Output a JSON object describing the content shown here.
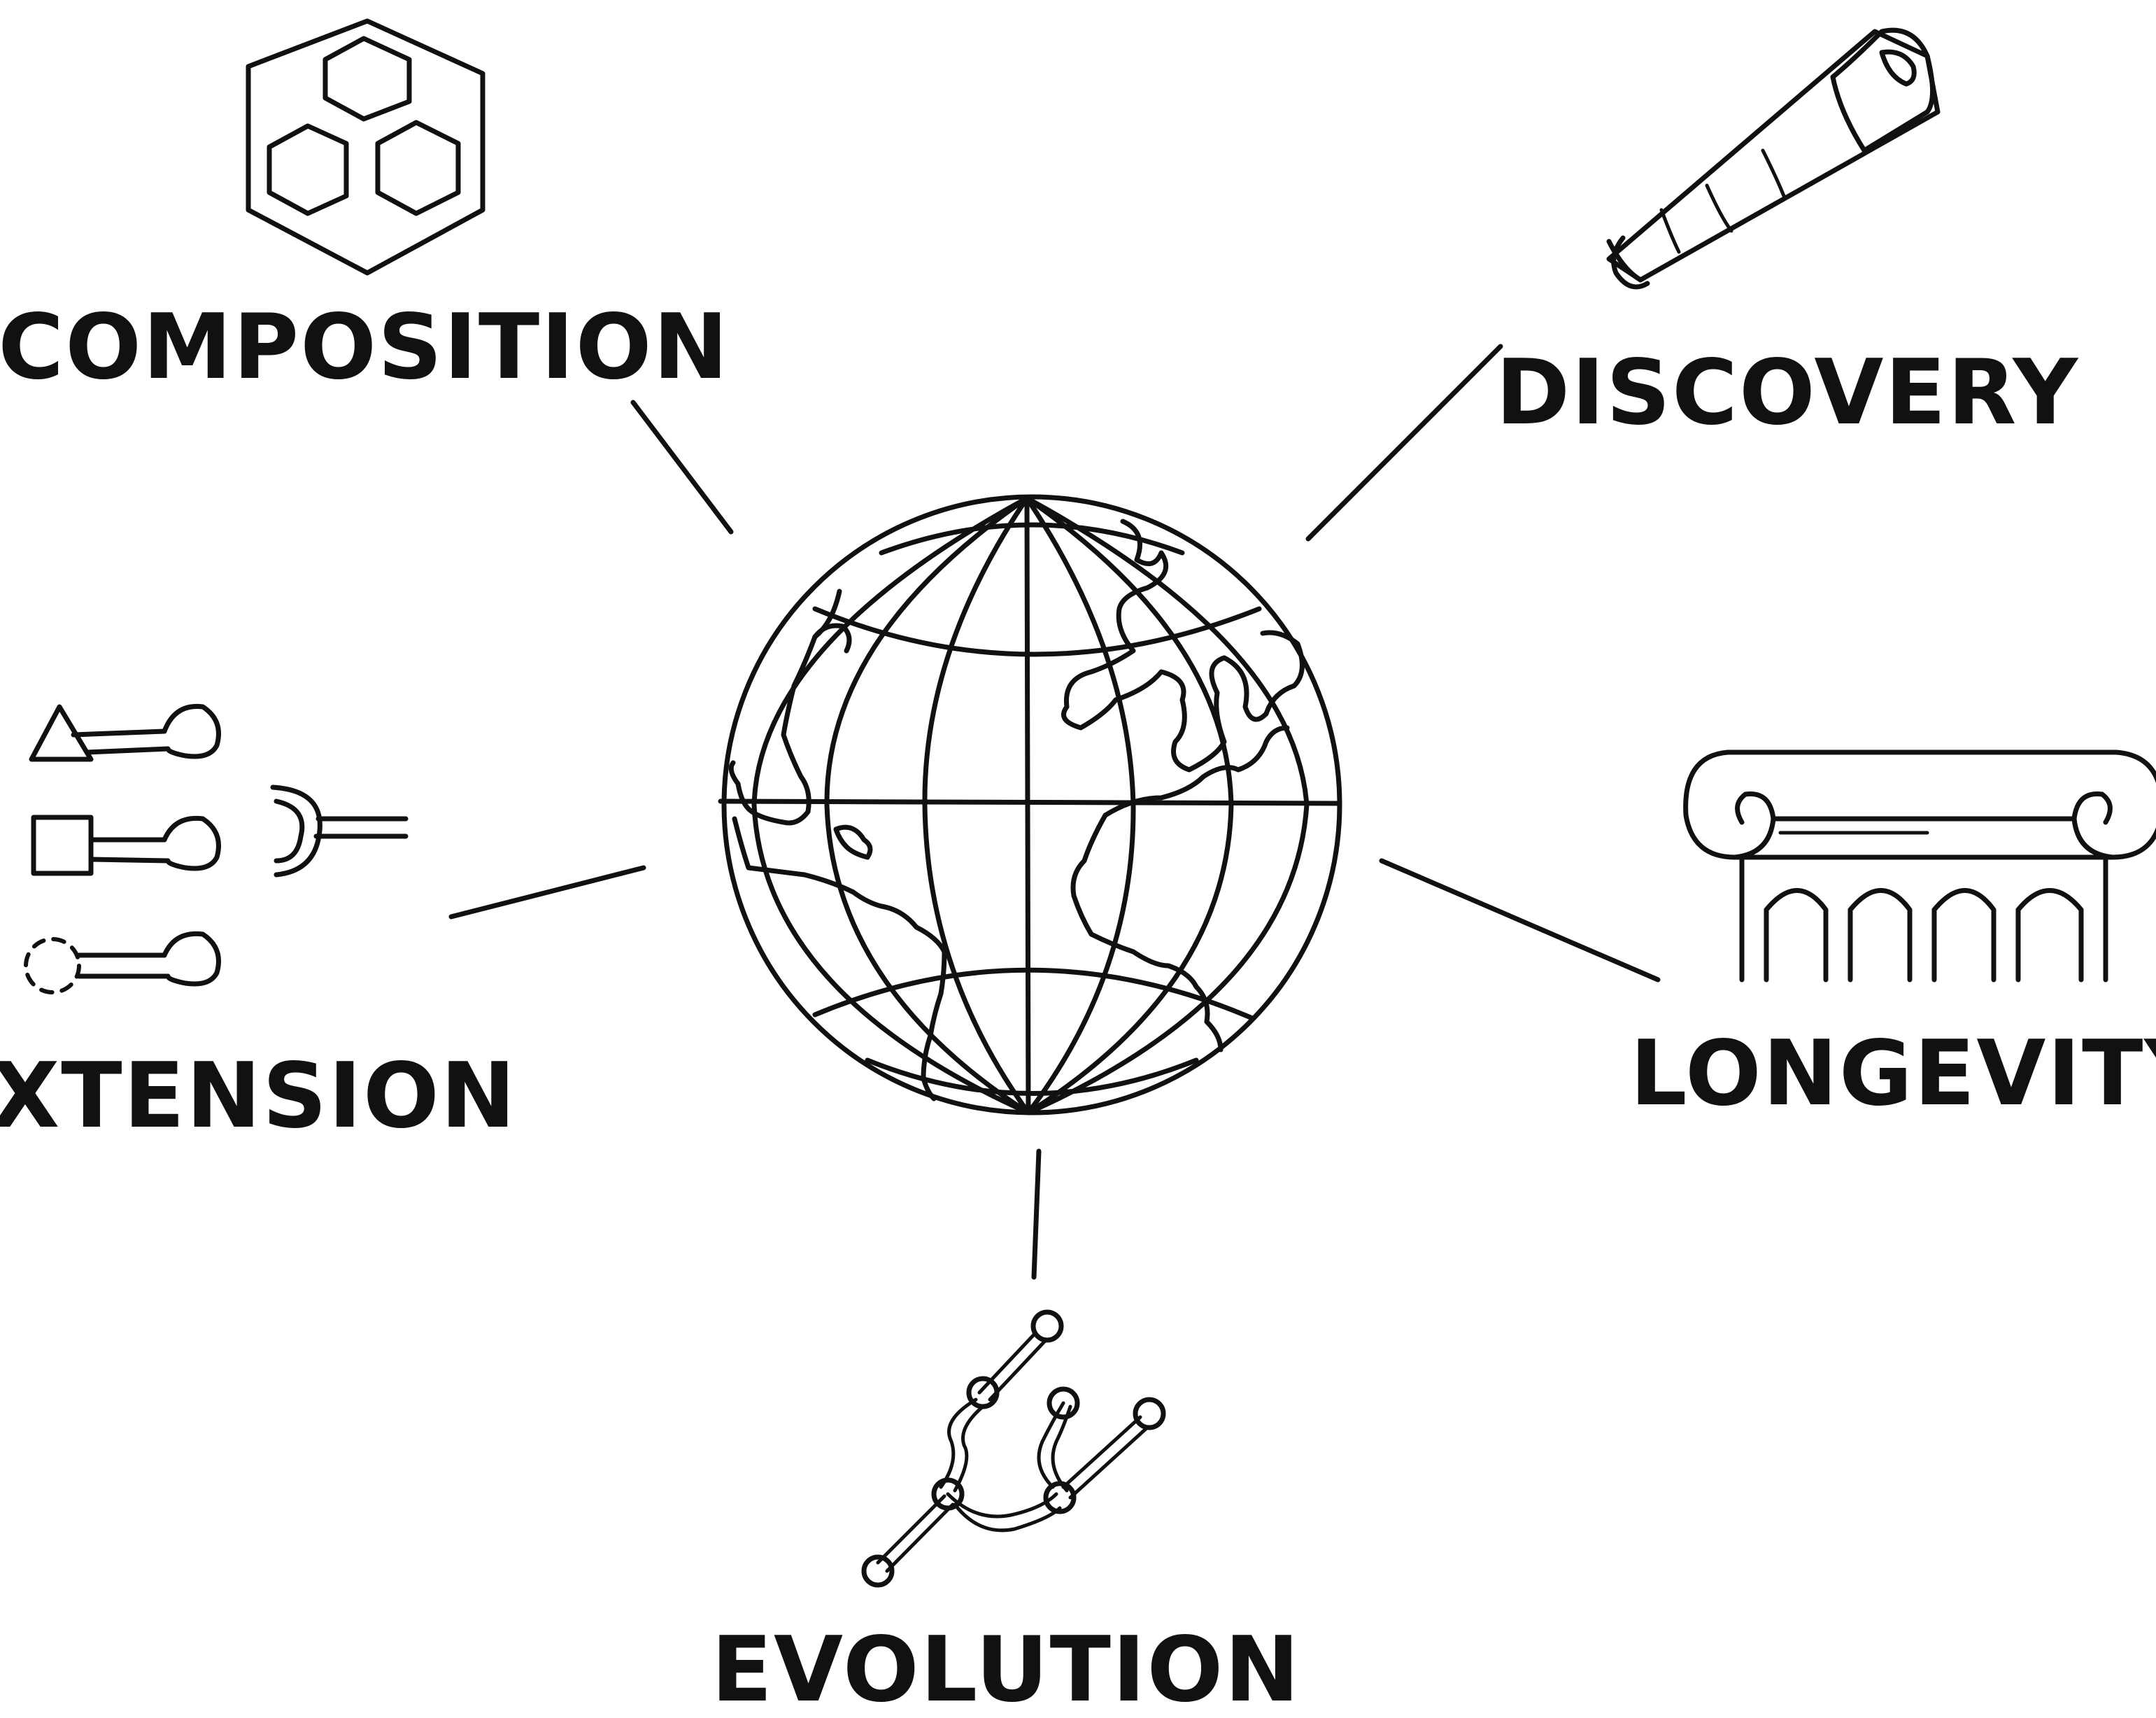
{
  "labels": {
    "composition": "COMPOSITION",
    "discovery": "DISCOVERY",
    "extension": "EXTENSION",
    "longevity": "LONGEVITY",
    "evolution": "EVOLUTION"
  },
  "colors": {
    "ink": "#111111",
    "background": "#ffffff"
  },
  "icons": [
    "hexagon-cluster-icon",
    "telescope-icon",
    "globe-icon",
    "plug-connectors-icon",
    "ionic-column-icon",
    "branching-graph-icon"
  ]
}
